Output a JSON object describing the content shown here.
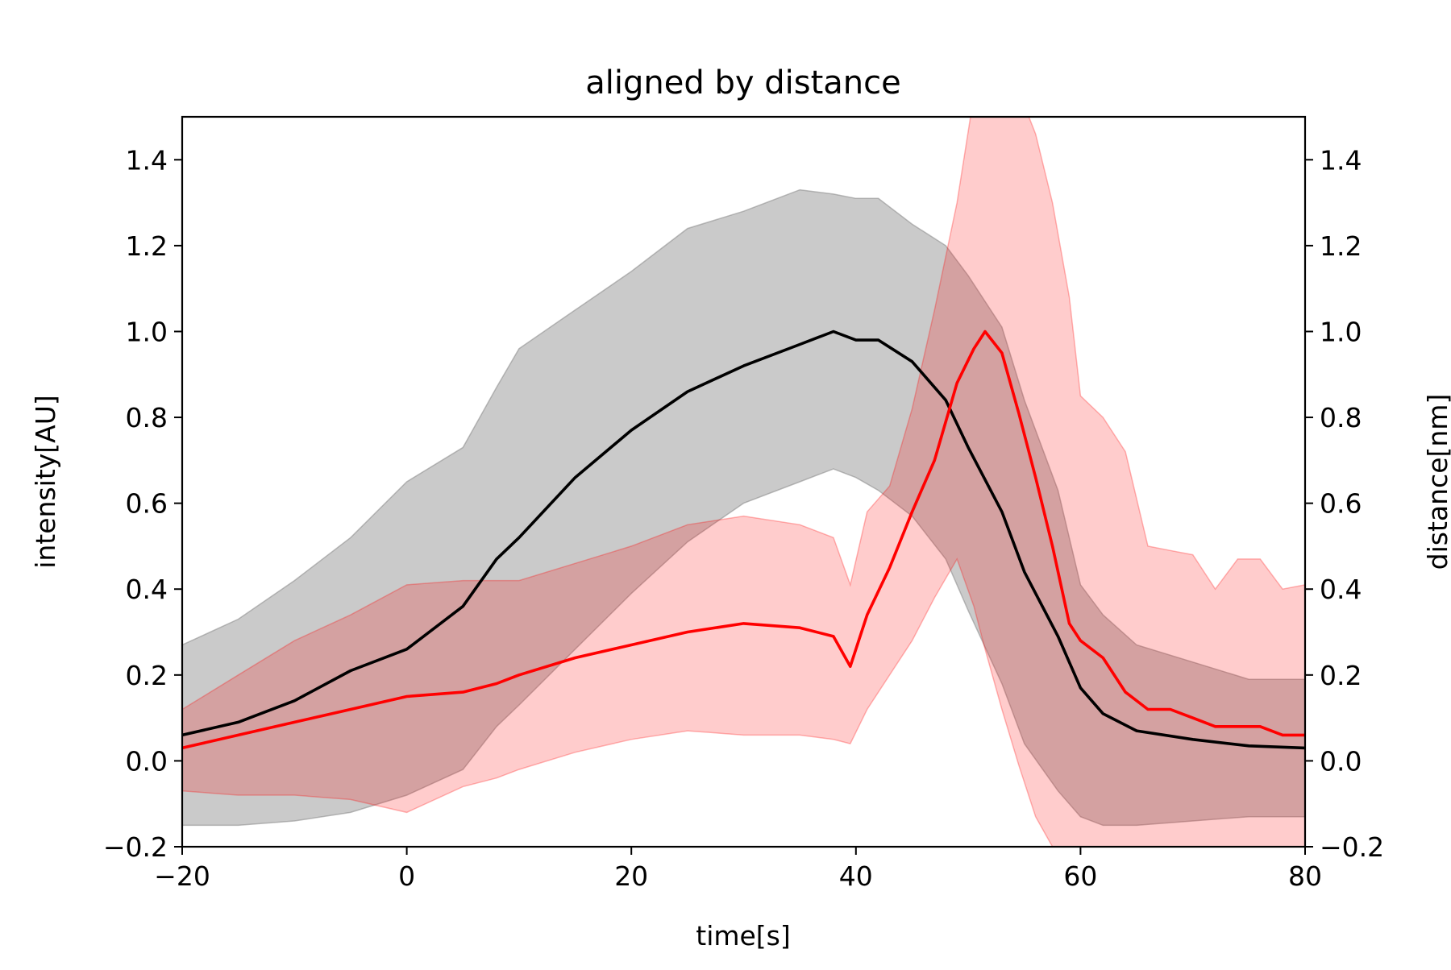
{
  "chart_data": {
    "type": "line",
    "title": "aligned by distance",
    "xlabel": "time[s]",
    "ylabel": "intensity[AU]",
    "ylabel_right": "distance[nm]",
    "xlim": [
      -20,
      80
    ],
    "ylim": [
      -0.2,
      1.5
    ],
    "ylim_right": [
      -0.2,
      1.5
    ],
    "x_ticks": [
      -20,
      0,
      20,
      40,
      60,
      80
    ],
    "x_tick_labels": [
      "−20",
      "0",
      "20",
      "40",
      "60",
      "80"
    ],
    "y_ticks": [
      -0.2,
      0.0,
      0.2,
      0.4,
      0.6,
      0.8,
      1.0,
      1.2,
      1.4
    ],
    "y_tick_labels": [
      "−0.2",
      "0.0",
      "0.2",
      "0.4",
      "0.6",
      "0.8",
      "1.0",
      "1.2",
      "1.4"
    ],
    "y_tick_labels_right": [
      "−0.2",
      "0.0",
      "0.2",
      "0.4",
      "0.6",
      "0.8",
      "1.0",
      "1.2",
      "1.4"
    ],
    "grid": false,
    "series": [
      {
        "axis": "left",
        "color": "#000000",
        "band_color": "#808080",
        "x": [
          -20,
          -15,
          -10,
          -5,
          0,
          5,
          8,
          10,
          15,
          20,
          25,
          30,
          35,
          38,
          40,
          42,
          45,
          48,
          50,
          53,
          55,
          58,
          60,
          62,
          65,
          70,
          75,
          80
        ],
        "values": [
          0.06,
          0.09,
          0.14,
          0.21,
          0.26,
          0.36,
          0.47,
          0.52,
          0.66,
          0.77,
          0.86,
          0.92,
          0.97,
          1.0,
          0.98,
          0.98,
          0.93,
          0.84,
          0.73,
          0.58,
          0.44,
          0.29,
          0.17,
          0.11,
          0.07,
          0.05,
          0.035,
          0.03
        ],
        "band_upper": [
          0.27,
          0.33,
          0.42,
          0.52,
          0.65,
          0.73,
          0.87,
          0.96,
          1.05,
          1.14,
          1.24,
          1.28,
          1.33,
          1.32,
          1.31,
          1.31,
          1.25,
          1.2,
          1.13,
          1.01,
          0.84,
          0.63,
          0.41,
          0.34,
          0.27,
          0.23,
          0.19,
          0.19
        ],
        "band_lower": [
          -0.15,
          -0.15,
          -0.14,
          -0.12,
          -0.08,
          -0.02,
          0.08,
          0.13,
          0.26,
          0.39,
          0.51,
          0.6,
          0.65,
          0.68,
          0.66,
          0.63,
          0.57,
          0.47,
          0.35,
          0.18,
          0.04,
          -0.07,
          -0.13,
          -0.15,
          -0.15,
          -0.14,
          -0.13,
          -0.13
        ]
      },
      {
        "axis": "right",
        "color": "#ff0000",
        "band_color": "#ff0000",
        "x": [
          -20,
          -15,
          -10,
          -5,
          0,
          5,
          8,
          10,
          15,
          20,
          25,
          30,
          35,
          38,
          39.5,
          41,
          43,
          45,
          47,
          49,
          50.5,
          51.5,
          53,
          54.5,
          56,
          57.5,
          59,
          60,
          62,
          64,
          66,
          68,
          70,
          72,
          74,
          76,
          78,
          80
        ],
        "values": [
          0.03,
          0.06,
          0.09,
          0.12,
          0.15,
          0.16,
          0.18,
          0.2,
          0.24,
          0.27,
          0.3,
          0.32,
          0.31,
          0.29,
          0.22,
          0.34,
          0.45,
          0.58,
          0.7,
          0.88,
          0.96,
          1.0,
          0.95,
          0.81,
          0.66,
          0.5,
          0.32,
          0.28,
          0.24,
          0.16,
          0.12,
          0.12,
          0.1,
          0.08,
          0.08,
          0.08,
          0.06,
          0.06
        ],
        "band_upper": [
          0.12,
          0.2,
          0.28,
          0.34,
          0.41,
          0.42,
          0.42,
          0.42,
          0.46,
          0.5,
          0.55,
          0.57,
          0.55,
          0.52,
          0.41,
          0.58,
          0.64,
          0.82,
          1.05,
          1.3,
          1.55,
          1.55,
          1.56,
          1.56,
          1.46,
          1.3,
          1.08,
          0.85,
          0.8,
          0.72,
          0.5,
          0.49,
          0.48,
          0.4,
          0.47,
          0.47,
          0.4,
          0.41
        ],
        "band_lower": [
          -0.07,
          -0.08,
          -0.08,
          -0.09,
          -0.12,
          -0.06,
          -0.04,
          -0.02,
          0.02,
          0.05,
          0.07,
          0.06,
          0.06,
          0.05,
          0.04,
          0.12,
          0.2,
          0.28,
          0.38,
          0.47,
          0.36,
          0.26,
          0.12,
          -0.01,
          -0.13,
          -0.2,
          -0.25,
          -0.25,
          -0.25,
          -0.25,
          -0.25,
          -0.25,
          -0.25,
          -0.25,
          -0.25,
          -0.25,
          -0.25,
          -0.25
        ]
      }
    ]
  }
}
